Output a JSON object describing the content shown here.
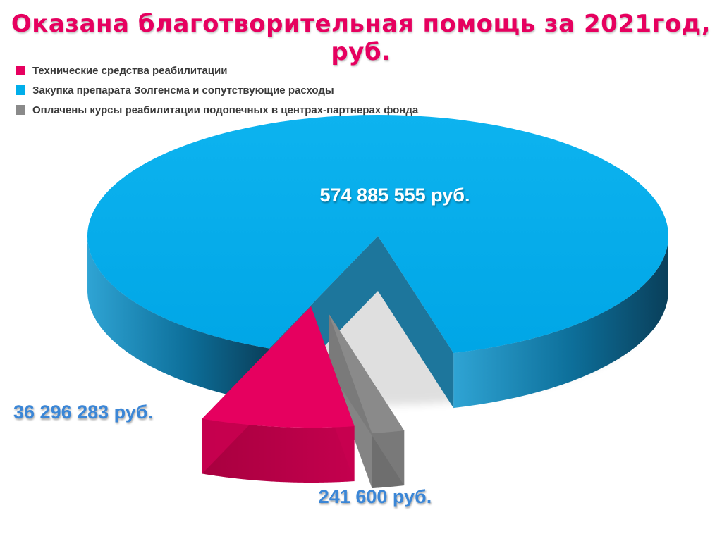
{
  "chart_data": {
    "type": "pie",
    "title": "Оказана благотворительная помощь за 2021год, руб.",
    "legend_position": "top-left",
    "categories": [
      "Технические средства реабилитации",
      "Закупка препарата Золгенсма и сопутствующие расходы",
      "Оплачены курсы реабилитации подопечных в центрах-партнерах фонда"
    ],
    "values": [
      36296283,
      574885555,
      241600
    ],
    "value_labels": [
      "36 296 283 руб.",
      "574 885 555 руб.",
      "241 600 руб."
    ],
    "colors": [
      "#e6005f",
      "#00aeea",
      "#8a8a8a"
    ]
  }
}
